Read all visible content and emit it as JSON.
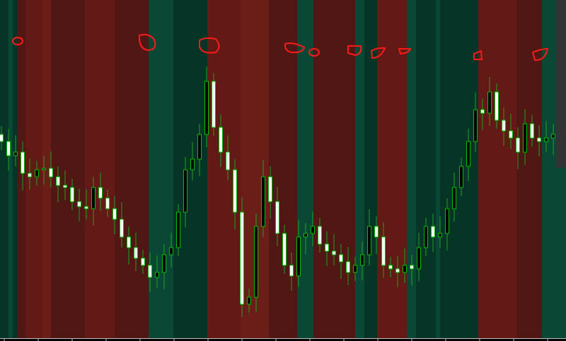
{
  "chart_data": {
    "type": "candlestick",
    "title": "",
    "xlabel": "",
    "ylabel": "",
    "ylim": [
      1.0,
      5.82
    ],
    "grid": false,
    "legend": "none",
    "colors": {
      "bull_body": "#000000",
      "bear_body": "#ffffff",
      "outline": "#00c000",
      "wick": "#1fa01f",
      "axis": "#bbbbbb"
    },
    "regime_colors": {
      "green": "#0a4835",
      "dark-green": "#063528",
      "red": "#631a16",
      "dark-red": "#511714",
      "light-red": "#6b1d18"
    },
    "regimes": [
      {
        "from": -0.2,
        "to": 1.0,
        "color": "dark-green"
      },
      {
        "from": 1.0,
        "to": 1.6,
        "color": "green"
      },
      {
        "from": 1.6,
        "to": 2.2,
        "color": "dark-green"
      },
      {
        "from": 2.2,
        "to": 3.4,
        "color": "dark-red"
      },
      {
        "from": 3.4,
        "to": 5.8,
        "color": "red"
      },
      {
        "from": 5.8,
        "to": 7.0,
        "color": "light-red"
      },
      {
        "from": 7.0,
        "to": 11.8,
        "color": "dark-red"
      },
      {
        "from": 11.8,
        "to": 16.0,
        "color": "red"
      },
      {
        "from": 16.0,
        "to": 20.8,
        "color": "dark-red"
      },
      {
        "from": 20.8,
        "to": 24.3,
        "color": "green"
      },
      {
        "from": 24.3,
        "to": 29.1,
        "color": "dark-green"
      },
      {
        "from": 29.1,
        "to": 33.8,
        "color": "red"
      },
      {
        "from": 33.8,
        "to": 37.8,
        "color": "light-red"
      },
      {
        "from": 37.8,
        "to": 41.8,
        "color": "dark-red"
      },
      {
        "from": 41.8,
        "to": 44.1,
        "color": "green"
      },
      {
        "from": 44.1,
        "to": 50.0,
        "color": "dark-red"
      },
      {
        "from": 50.0,
        "to": 51.3,
        "color": "green"
      },
      {
        "from": 51.3,
        "to": 53.1,
        "color": "dark-green"
      },
      {
        "from": 53.1,
        "to": 57.3,
        "color": "red"
      },
      {
        "from": 57.3,
        "to": 58.6,
        "color": "green"
      },
      {
        "from": 58.6,
        "to": 61.4,
        "color": "dark-green"
      },
      {
        "from": 61.4,
        "to": 62.0,
        "color": "green"
      },
      {
        "from": 62.0,
        "to": 67.4,
        "color": "dark-green"
      },
      {
        "from": 67.4,
        "to": 72.8,
        "color": "red"
      },
      {
        "from": 72.8,
        "to": 76.4,
        "color": "dark-red"
      },
      {
        "from": 76.4,
        "to": 79.8,
        "color": "green"
      }
    ],
    "close": [
      3.82,
      3.62,
      3.67,
      3.37,
      3.32,
      3.42,
      3.44,
      3.32,
      3.2,
      3.17,
      2.97,
      2.9,
      2.87,
      3.17,
      3.02,
      2.87,
      2.72,
      2.47,
      2.32,
      2.17,
      2.07,
      1.9,
      1.97,
      2.22,
      2.32,
      2.82,
      3.42,
      3.57,
      3.92,
      4.67,
      4.02,
      3.67,
      3.42,
      2.82,
      1.52,
      1.62,
      2.62,
      3.32,
      2.97,
      2.52,
      2.07,
      1.92,
      2.47,
      2.52,
      2.62,
      2.37,
      2.27,
      2.22,
      2.12,
      1.97,
      2.07,
      2.22,
      2.62,
      2.47,
      2.07,
      2.02,
      1.97,
      2.07,
      2.02,
      2.32,
      2.62,
      2.47,
      2.52,
      2.87,
      3.17,
      3.47,
      3.82,
      4.27,
      4.22,
      4.52,
      4.12,
      3.97,
      3.87,
      3.67,
      4.07,
      3.87,
      3.82,
      3.87,
      3.92
    ]
  }
}
